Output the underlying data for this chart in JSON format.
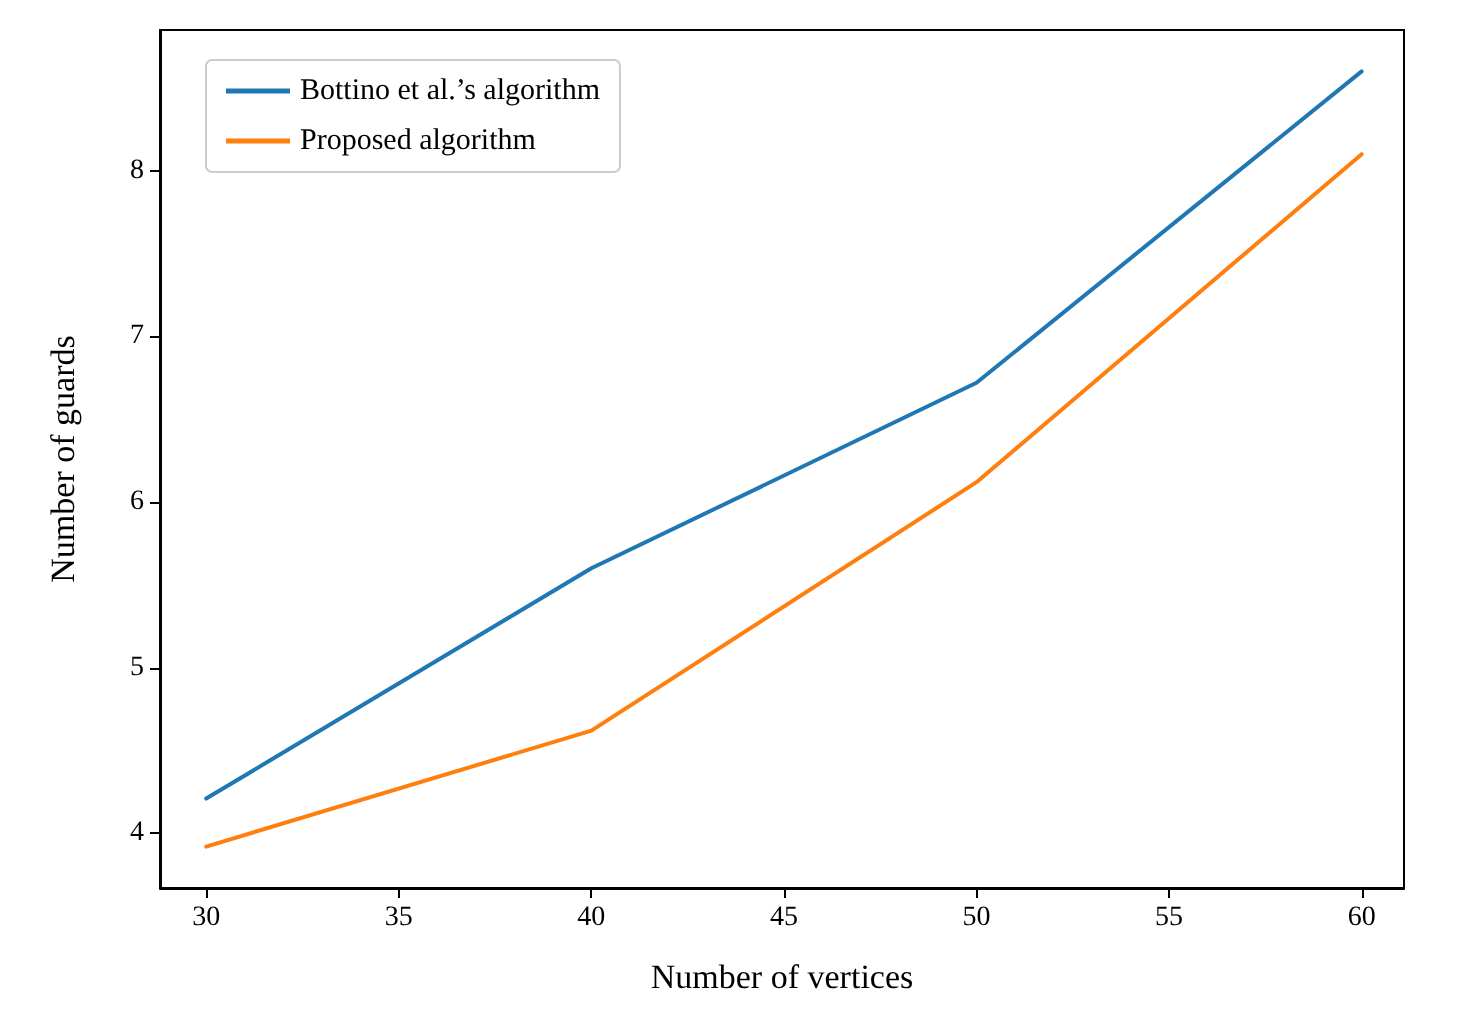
{
  "chart_data": {
    "type": "line",
    "xlabel": "Number of vertices",
    "ylabel": "Number of guards",
    "x": [
      30,
      40,
      50,
      60
    ],
    "series": [
      {
        "name": "Bottino et al.’s algorithm",
        "color": "#1f77b4",
        "values": [
          4.21,
          5.6,
          6.72,
          8.6
        ]
      },
      {
        "name": "Proposed algorithm",
        "color": "#ff7f0e",
        "values": [
          3.92,
          4.62,
          6.12,
          8.1
        ]
      }
    ],
    "xlim": [
      28.8,
      61.1
    ],
    "ylim": [
      3.67,
      8.85
    ],
    "xticks": [
      30,
      35,
      40,
      45,
      50,
      55,
      60
    ],
    "yticks": [
      4,
      5,
      6,
      7,
      8
    ],
    "grid": false,
    "legend": "top left"
  }
}
